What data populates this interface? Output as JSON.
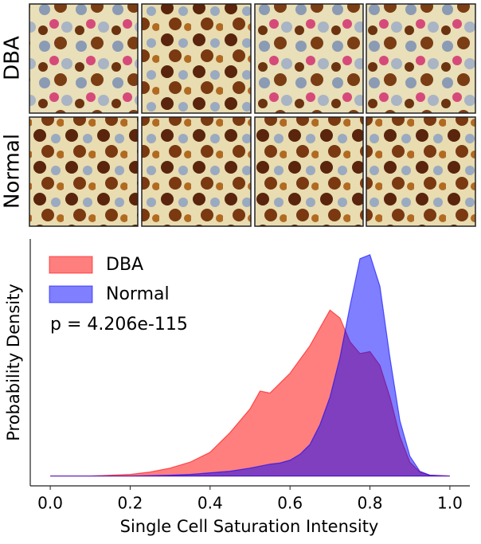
{
  "panel_rows": [
    "DBA",
    "Normal"
  ],
  "chart_data": {
    "type": "area",
    "x_label": "Single Cell Saturation Intensity",
    "y_label": "Probability Density",
    "annotation": "p = 4.206e-115",
    "legend": "upper left",
    "x": [
      0,
      0.1,
      0.2,
      0.25,
      0.3,
      0.35,
      0.4,
      0.45,
      0.5,
      0.525,
      0.55,
      0.575,
      0.6,
      0.625,
      0.65,
      0.675,
      0.7,
      0.725,
      0.75,
      0.775,
      0.8,
      0.825,
      0.85,
      0.875,
      0.9,
      0.925,
      0.95,
      1.0
    ],
    "series": [
      {
        "name": "DBA",
        "color": "#ff0000",
        "values": [
          0,
          0,
          0.04,
          0.1,
          0.2,
          0.35,
          0.6,
          1.1,
          1.7,
          2.15,
          2.1,
          2.35,
          2.6,
          2.95,
          3.3,
          3.75,
          4.2,
          4.0,
          3.4,
          3.1,
          3.15,
          2.8,
          2.0,
          1.0,
          0.35,
          0.1,
          0.02,
          0
        ]
      },
      {
        "name": "Normal",
        "color": "#0000ff",
        "values": [
          0,
          0,
          0,
          0.01,
          0.02,
          0.04,
          0.08,
          0.12,
          0.2,
          0.25,
          0.3,
          0.33,
          0.4,
          0.55,
          0.8,
          1.3,
          2.0,
          3.0,
          4.3,
          5.5,
          5.6,
          4.8,
          3.0,
          1.4,
          0.5,
          0.12,
          0.02,
          0
        ]
      }
    ],
    "xlim": [
      -0.05,
      1.05
    ],
    "ylim": [
      -0.25,
      6.0
    ],
    "xticks": [
      {
        "value": 0,
        "label": "0.0"
      },
      0.2,
      0.4,
      0.6,
      0.8,
      {
        "value": 1,
        "label": "1.0"
      }
    ]
  }
}
